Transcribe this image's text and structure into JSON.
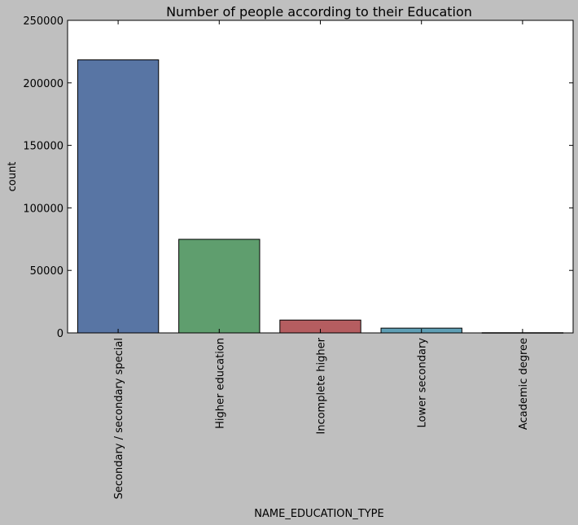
{
  "chart_data": {
    "type": "bar",
    "title": "Number of people according to their Education",
    "xlabel": "NAME_EDUCATION_TYPE",
    "ylabel": "count",
    "categories": [
      "Secondary / secondary special",
      "Higher education",
      "Incomplete higher",
      "Lower secondary",
      "Academic degree"
    ],
    "values": [
      218391,
      74863,
      10277,
      3816,
      164
    ],
    "colors": [
      "#5875a4",
      "#5f9e6e",
      "#b55d60",
      "#5f9fb5",
      "#857aab"
    ],
    "ylim": [
      0,
      250000
    ],
    "yticks": [
      0,
      50000,
      100000,
      150000,
      200000,
      250000
    ],
    "ytick_labels": [
      "0",
      "50000",
      "100000",
      "150000",
      "200000",
      "250000"
    ],
    "grid": false,
    "legend": false
  }
}
